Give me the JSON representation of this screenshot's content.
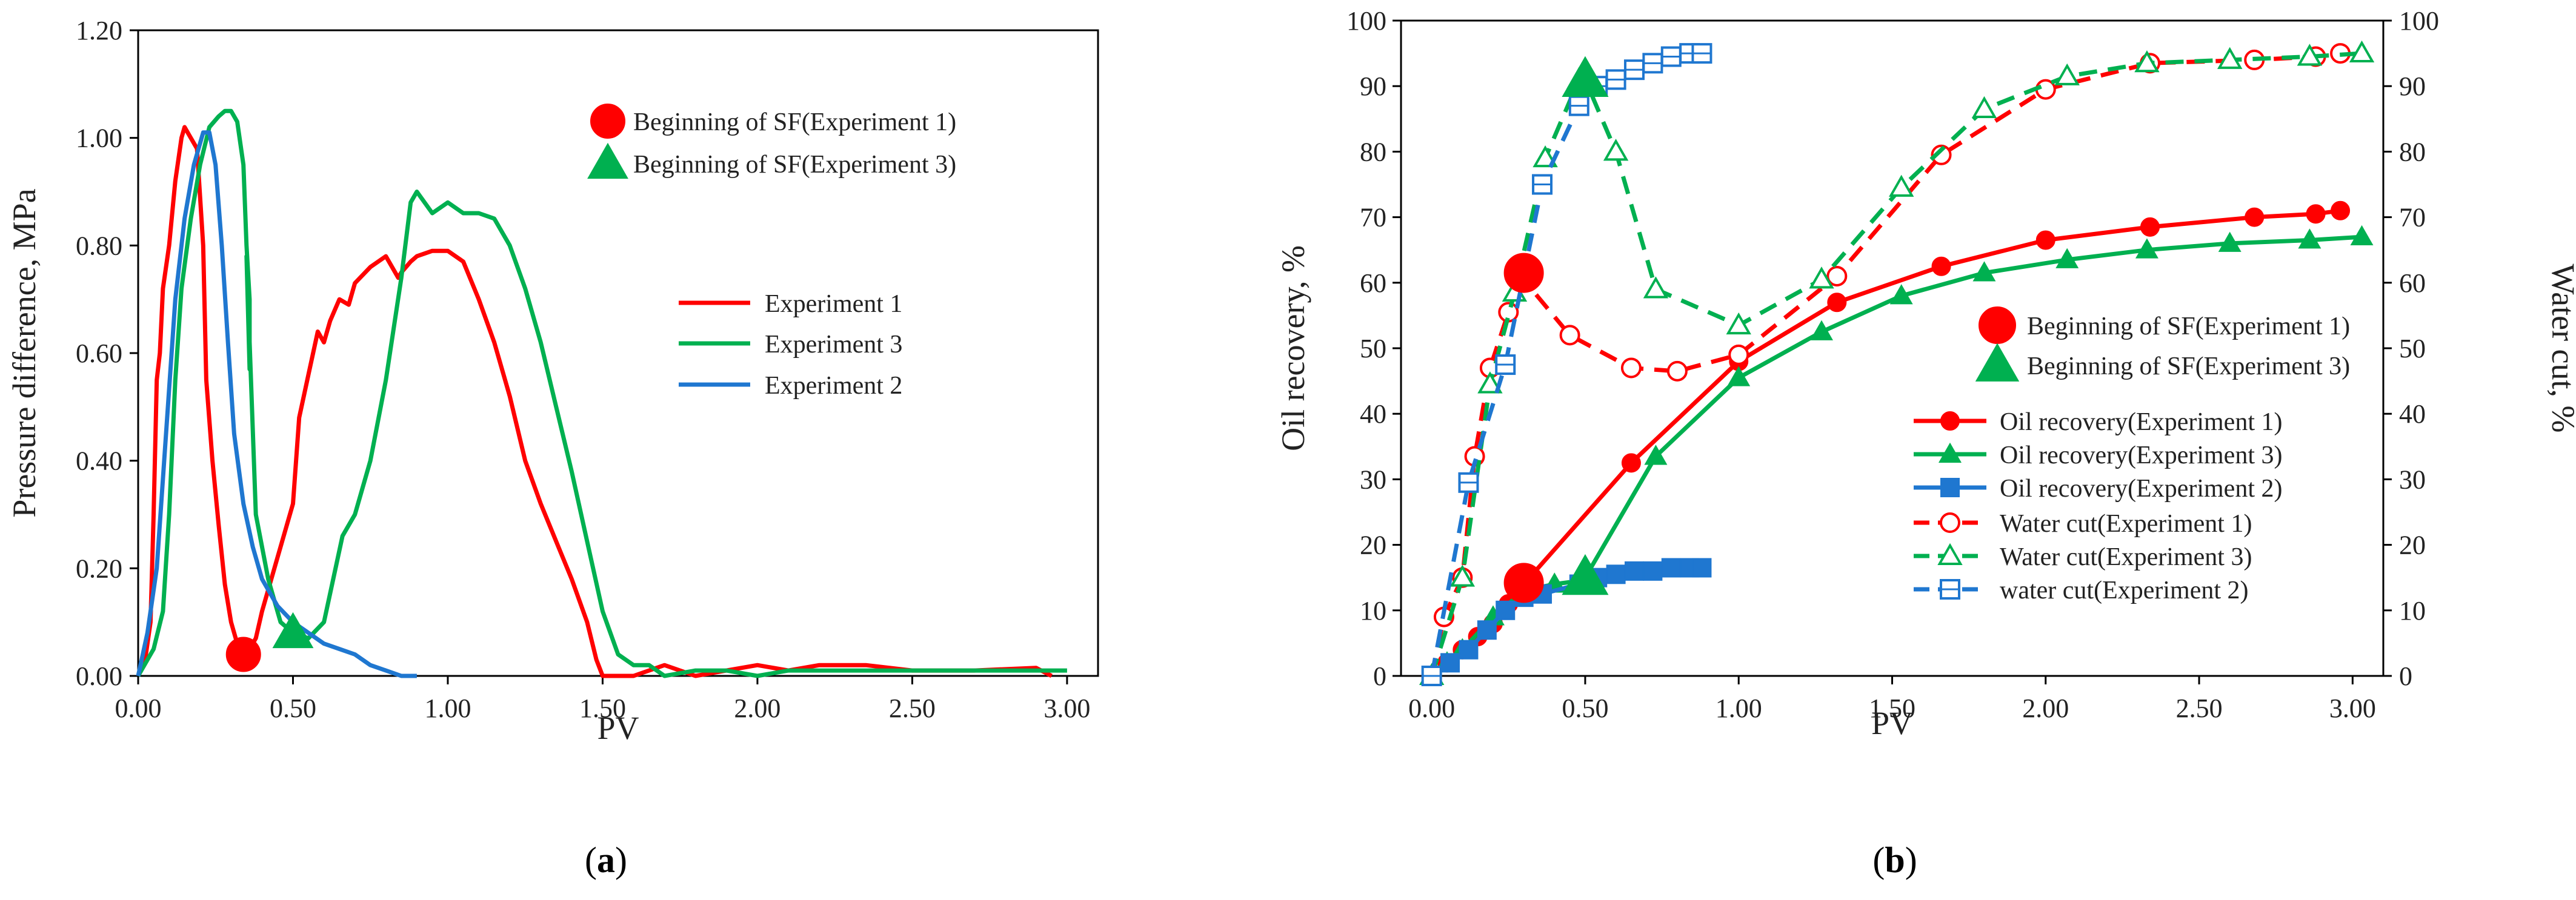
{
  "chart_data": [
    {
      "type": "line",
      "panel_label": "a",
      "xlabel": "PV",
      "ylabel": "Pressure difference, MPa",
      "xlim": [
        0,
        3.1
      ],
      "ylim": [
        0,
        1.2
      ],
      "xticks": [
        "0.00",
        "0.50",
        "1.00",
        "1.50",
        "2.00",
        "2.50",
        "3.00"
      ],
      "xtick_values": [
        0,
        0.5,
        1,
        1.5,
        2,
        2.5,
        3
      ],
      "yticks": [
        "0.00",
        "0.20",
        "0.40",
        "0.60",
        "0.80",
        "1.00",
        "1.20"
      ],
      "ytick_values": [
        0,
        0.2,
        0.4,
        0.6,
        0.8,
        1.0,
        1.2
      ],
      "legend": {
        "marker_entries": [
          {
            "label": "Beginning  of SF(Experiment 1)",
            "color": "#ff0000",
            "marker": "circle"
          },
          {
            "label": "Beginning  of SF(Experiment 3)",
            "color": "#00b050",
            "marker": "triangle"
          }
        ],
        "line_entries": [
          {
            "label": "Experiment 1",
            "color": "#ff0000"
          },
          {
            "label": "Experiment 3",
            "color": "#00b050"
          },
          {
            "label": "Experiment 2",
            "color": "#1f77d0"
          }
        ]
      },
      "series": [
        {
          "name": "Experiment 1",
          "color": "#ff0000",
          "x": [
            0.02,
            0.04,
            0.05,
            0.06,
            0.07,
            0.08,
            0.1,
            0.12,
            0.14,
            0.15,
            0.17,
            0.19,
            0.21,
            0.22,
            0.24,
            0.26,
            0.28,
            0.3,
            0.32,
            0.34,
            0.36,
            0.38,
            0.4,
            0.45,
            0.5,
            0.52,
            0.55,
            0.58,
            0.6,
            0.62,
            0.65,
            0.68,
            0.7,
            0.75,
            0.8,
            0.82,
            0.84,
            0.85,
            0.88,
            0.9,
            0.95,
            1.0,
            1.05,
            1.1,
            1.15,
            1.2,
            1.25,
            1.3,
            1.35,
            1.4,
            1.45,
            1.48,
            1.5,
            1.55,
            1.6,
            1.7,
            1.8,
            1.9,
            2.0,
            2.1,
            2.2,
            2.3,
            2.35,
            2.5,
            2.7,
            2.9,
            2.95
          ],
          "y": [
            0.02,
            0.1,
            0.3,
            0.55,
            0.6,
            0.72,
            0.8,
            0.92,
            1.0,
            1.02,
            1.0,
            0.98,
            0.8,
            0.55,
            0.4,
            0.28,
            0.17,
            0.1,
            0.06,
            0.04,
            0.05,
            0.07,
            0.12,
            0.22,
            0.32,
            0.48,
            0.56,
            0.64,
            0.62,
            0.66,
            0.7,
            0.69,
            0.73,
            0.76,
            0.78,
            0.76,
            0.74,
            0.75,
            0.77,
            0.78,
            0.79,
            0.79,
            0.77,
            0.7,
            0.62,
            0.52,
            0.4,
            0.32,
            0.25,
            0.18,
            0.1,
            0.03,
            0.0,
            0.0,
            0.0,
            0.02,
            0.0,
            0.01,
            0.02,
            0.01,
            0.02,
            0.02,
            0.02,
            0.01,
            0.01,
            0.015,
            0.0
          ]
        },
        {
          "name": "Experiment 3",
          "color": "#00b050",
          "x": [
            0.0,
            0.05,
            0.08,
            0.1,
            0.12,
            0.14,
            0.17,
            0.2,
            0.23,
            0.26,
            0.28,
            0.3,
            0.32,
            0.34,
            0.35,
            0.36,
            0.36,
            0.35,
            0.38,
            0.42,
            0.46,
            0.5,
            0.55,
            0.6,
            0.63,
            0.66,
            0.7,
            0.75,
            0.8,
            0.85,
            0.88,
            0.9,
            0.95,
            1.0,
            1.05,
            1.1,
            1.15,
            1.2,
            1.25,
            1.3,
            1.35,
            1.4,
            1.45,
            1.5,
            1.55,
            1.6,
            1.65,
            1.7,
            1.8,
            1.9,
            2.0,
            2.1,
            2.2,
            2.4,
            2.6,
            2.8,
            3.0
          ],
          "y": [
            0.0,
            0.05,
            0.12,
            0.3,
            0.55,
            0.72,
            0.85,
            0.95,
            1.02,
            1.04,
            1.05,
            1.05,
            1.03,
            0.95,
            0.8,
            0.7,
            0.57,
            0.78,
            0.3,
            0.18,
            0.1,
            0.08,
            0.07,
            0.1,
            0.18,
            0.26,
            0.3,
            0.4,
            0.55,
            0.74,
            0.88,
            0.9,
            0.86,
            0.88,
            0.86,
            0.86,
            0.85,
            0.8,
            0.72,
            0.62,
            0.5,
            0.38,
            0.25,
            0.12,
            0.04,
            0.02,
            0.02,
            0.0,
            0.01,
            0.01,
            0.0,
            0.01,
            0.01,
            0.01,
            0.01,
            0.01,
            0.01
          ]
        },
        {
          "name": "Experiment 2",
          "color": "#1f77d0",
          "x": [
            0.0,
            0.03,
            0.06,
            0.09,
            0.12,
            0.15,
            0.18,
            0.21,
            0.23,
            0.25,
            0.27,
            0.29,
            0.31,
            0.34,
            0.37,
            0.4,
            0.45,
            0.5,
            0.55,
            0.6,
            0.65,
            0.7,
            0.75,
            0.8,
            0.85,
            0.9
          ],
          "y": [
            0.0,
            0.08,
            0.2,
            0.45,
            0.7,
            0.85,
            0.95,
            1.01,
            1.01,
            0.95,
            0.8,
            0.62,
            0.45,
            0.32,
            0.24,
            0.18,
            0.13,
            0.1,
            0.08,
            0.06,
            0.05,
            0.04,
            0.02,
            0.01,
            0.0,
            0.0
          ]
        }
      ],
      "markers": [
        {
          "name": "Beginning  of SF(Experiment 1)",
          "marker": "circle",
          "color": "#ff0000",
          "x": 0.34,
          "y": 0.04
        },
        {
          "name": "Beginning  of SF(Experiment 3)",
          "marker": "triangle",
          "color": "#00b050",
          "x": 0.5,
          "y": 0.08
        }
      ]
    },
    {
      "type": "line",
      "panel_label": "b",
      "xlabel": "PV",
      "ylabel": "Oil recovery, %",
      "y2label": "Water cut, %",
      "xlim": [
        -0.1,
        3.1
      ],
      "ylim": [
        0,
        100
      ],
      "y2lim": [
        0,
        100
      ],
      "xticks": [
        "0.00",
        "0.50",
        "1.00",
        "1.50",
        "2.00",
        "2.50",
        "3.00"
      ],
      "xtick_values": [
        0,
        0.5,
        1,
        1.5,
        2,
        2.5,
        3
      ],
      "yticks": [
        "0",
        "10",
        "20",
        "30",
        "40",
        "50",
        "60",
        "70",
        "80",
        "90",
        "100"
      ],
      "ytick_values": [
        0,
        10,
        20,
        30,
        40,
        50,
        60,
        70,
        80,
        90,
        100
      ],
      "legend": {
        "marker_entries": [
          {
            "label": "Beginning  of SF(Experiment 1)",
            "color": "#ff0000",
            "marker": "circle"
          },
          {
            "label": "Beginning  of SF(Experiment 3)",
            "color": "#00b050",
            "marker": "triangle"
          }
        ],
        "line_entries": [
          {
            "label": "Oil recovery(Experiment 1)",
            "color": "#ff0000",
            "marker": "circle",
            "dash": false
          },
          {
            "label": "Oil recovery(Experiment 3)",
            "color": "#00b050",
            "marker": "triangle",
            "dash": false
          },
          {
            "label": "Oil recovery(Experiment 2)",
            "color": "#1f77d0",
            "marker": "square",
            "dash": false
          },
          {
            "label": "Water cut(Experiment 1)",
            "color": "#ff0000",
            "marker": "circle-open",
            "dash": true
          },
          {
            "label": "Water cut(Experiment 3)",
            "color": "#00b050",
            "marker": "triangle-open",
            "dash": true
          },
          {
            "label": "water cut(Experiment 2)",
            "color": "#1f77d0",
            "marker": "square-open",
            "dash": true
          }
        ]
      },
      "series": [
        {
          "name": "Oil recovery(Experiment 1)",
          "color": "#ff0000",
          "marker": "circle",
          "dash": false,
          "x": [
            0.0,
            0.05,
            0.1,
            0.15,
            0.2,
            0.25,
            0.3,
            0.65,
            1.0,
            1.32,
            1.66,
            2.0,
            2.34,
            2.68,
            2.88,
            2.96
          ],
          "y": [
            0,
            2,
            4,
            6,
            8,
            11,
            14,
            32.5,
            48,
            57,
            62.5,
            66.5,
            68.5,
            70,
            70.5,
            71
          ]
        },
        {
          "name": "Oil recovery(Experiment 3)",
          "color": "#00b050",
          "marker": "triangle",
          "dash": false,
          "x": [
            0.0,
            0.05,
            0.1,
            0.2,
            0.3,
            0.4,
            0.48,
            0.5,
            0.73,
            1.0,
            1.27,
            1.53,
            1.8,
            2.07,
            2.33,
            2.6,
            2.86,
            3.03
          ],
          "y": [
            0,
            2,
            4,
            9,
            13,
            14,
            14.5,
            15,
            33.5,
            45.5,
            52.5,
            58,
            61.5,
            63.5,
            65,
            66,
            66.5,
            67
          ]
        },
        {
          "name": "Oil recovery(Experiment 2)",
          "color": "#1f77d0",
          "marker": "square",
          "dash": false,
          "x": [
            0.0,
            0.06,
            0.12,
            0.18,
            0.24,
            0.3,
            0.36,
            0.48,
            0.54,
            0.6,
            0.66,
            0.72,
            0.78,
            0.84,
            0.88
          ],
          "y": [
            0,
            2,
            4,
            7,
            10,
            12,
            12.5,
            14,
            15,
            15.5,
            16,
            16,
            16.5,
            16.5,
            16.5
          ]
        },
        {
          "name": "Water cut(Experiment 1)",
          "color": "#ff0000",
          "marker": "circle-open",
          "dash": true,
          "x": [
            0.0,
            0.04,
            0.1,
            0.14,
            0.19,
            0.25,
            0.29,
            0.45,
            0.65,
            0.8,
            1.0,
            1.32,
            1.66,
            2.0,
            2.34,
            2.68,
            2.88,
            2.96
          ],
          "y": [
            0,
            9,
            15,
            33.5,
            47,
            55.5,
            61,
            52,
            47,
            46.5,
            49,
            61,
            79.5,
            89.5,
            93.5,
            94,
            94.5,
            95
          ]
        },
        {
          "name": "Water cut(Experiment 3)",
          "color": "#00b050",
          "marker": "triangle-open",
          "dash": true,
          "x": [
            0.0,
            0.1,
            0.19,
            0.27,
            0.37,
            0.48,
            0.5,
            0.6,
            0.73,
            1.0,
            1.27,
            1.53,
            1.8,
            2.07,
            2.33,
            2.6,
            2.86,
            3.03
          ],
          "y": [
            0,
            15,
            44.5,
            58.5,
            79,
            91,
            91,
            80,
            59,
            53.5,
            60.5,
            74.5,
            86.5,
            91.5,
            93.5,
            94,
            94.5,
            95
          ]
        },
        {
          "name": "water cut(Experiment 2)",
          "color": "#1f77d0",
          "marker": "square-open",
          "dash": true,
          "x": [
            0.0,
            0.12,
            0.24,
            0.36,
            0.48,
            0.54,
            0.6,
            0.66,
            0.72,
            0.78,
            0.84,
            0.88
          ],
          "y": [
            0,
            29.5,
            47.5,
            75,
            87,
            90,
            91,
            92.5,
            93.5,
            94.5,
            95,
            95
          ]
        }
      ],
      "markers": [
        {
          "name": "Beginning  of SF(Experiment 1)",
          "marker": "circle",
          "color": "#ff0000",
          "points": [
            {
              "x": 0.3,
              "y": 14.2
            },
            {
              "x": 0.3,
              "y": 61.5
            }
          ]
        },
        {
          "name": "Beginning  of SF(Experiment 3)",
          "marker": "triangle",
          "color": "#00b050",
          "points": [
            {
              "x": 0.5,
              "y": 15
            },
            {
              "x": 0.5,
              "y": 91
            }
          ]
        }
      ]
    }
  ]
}
